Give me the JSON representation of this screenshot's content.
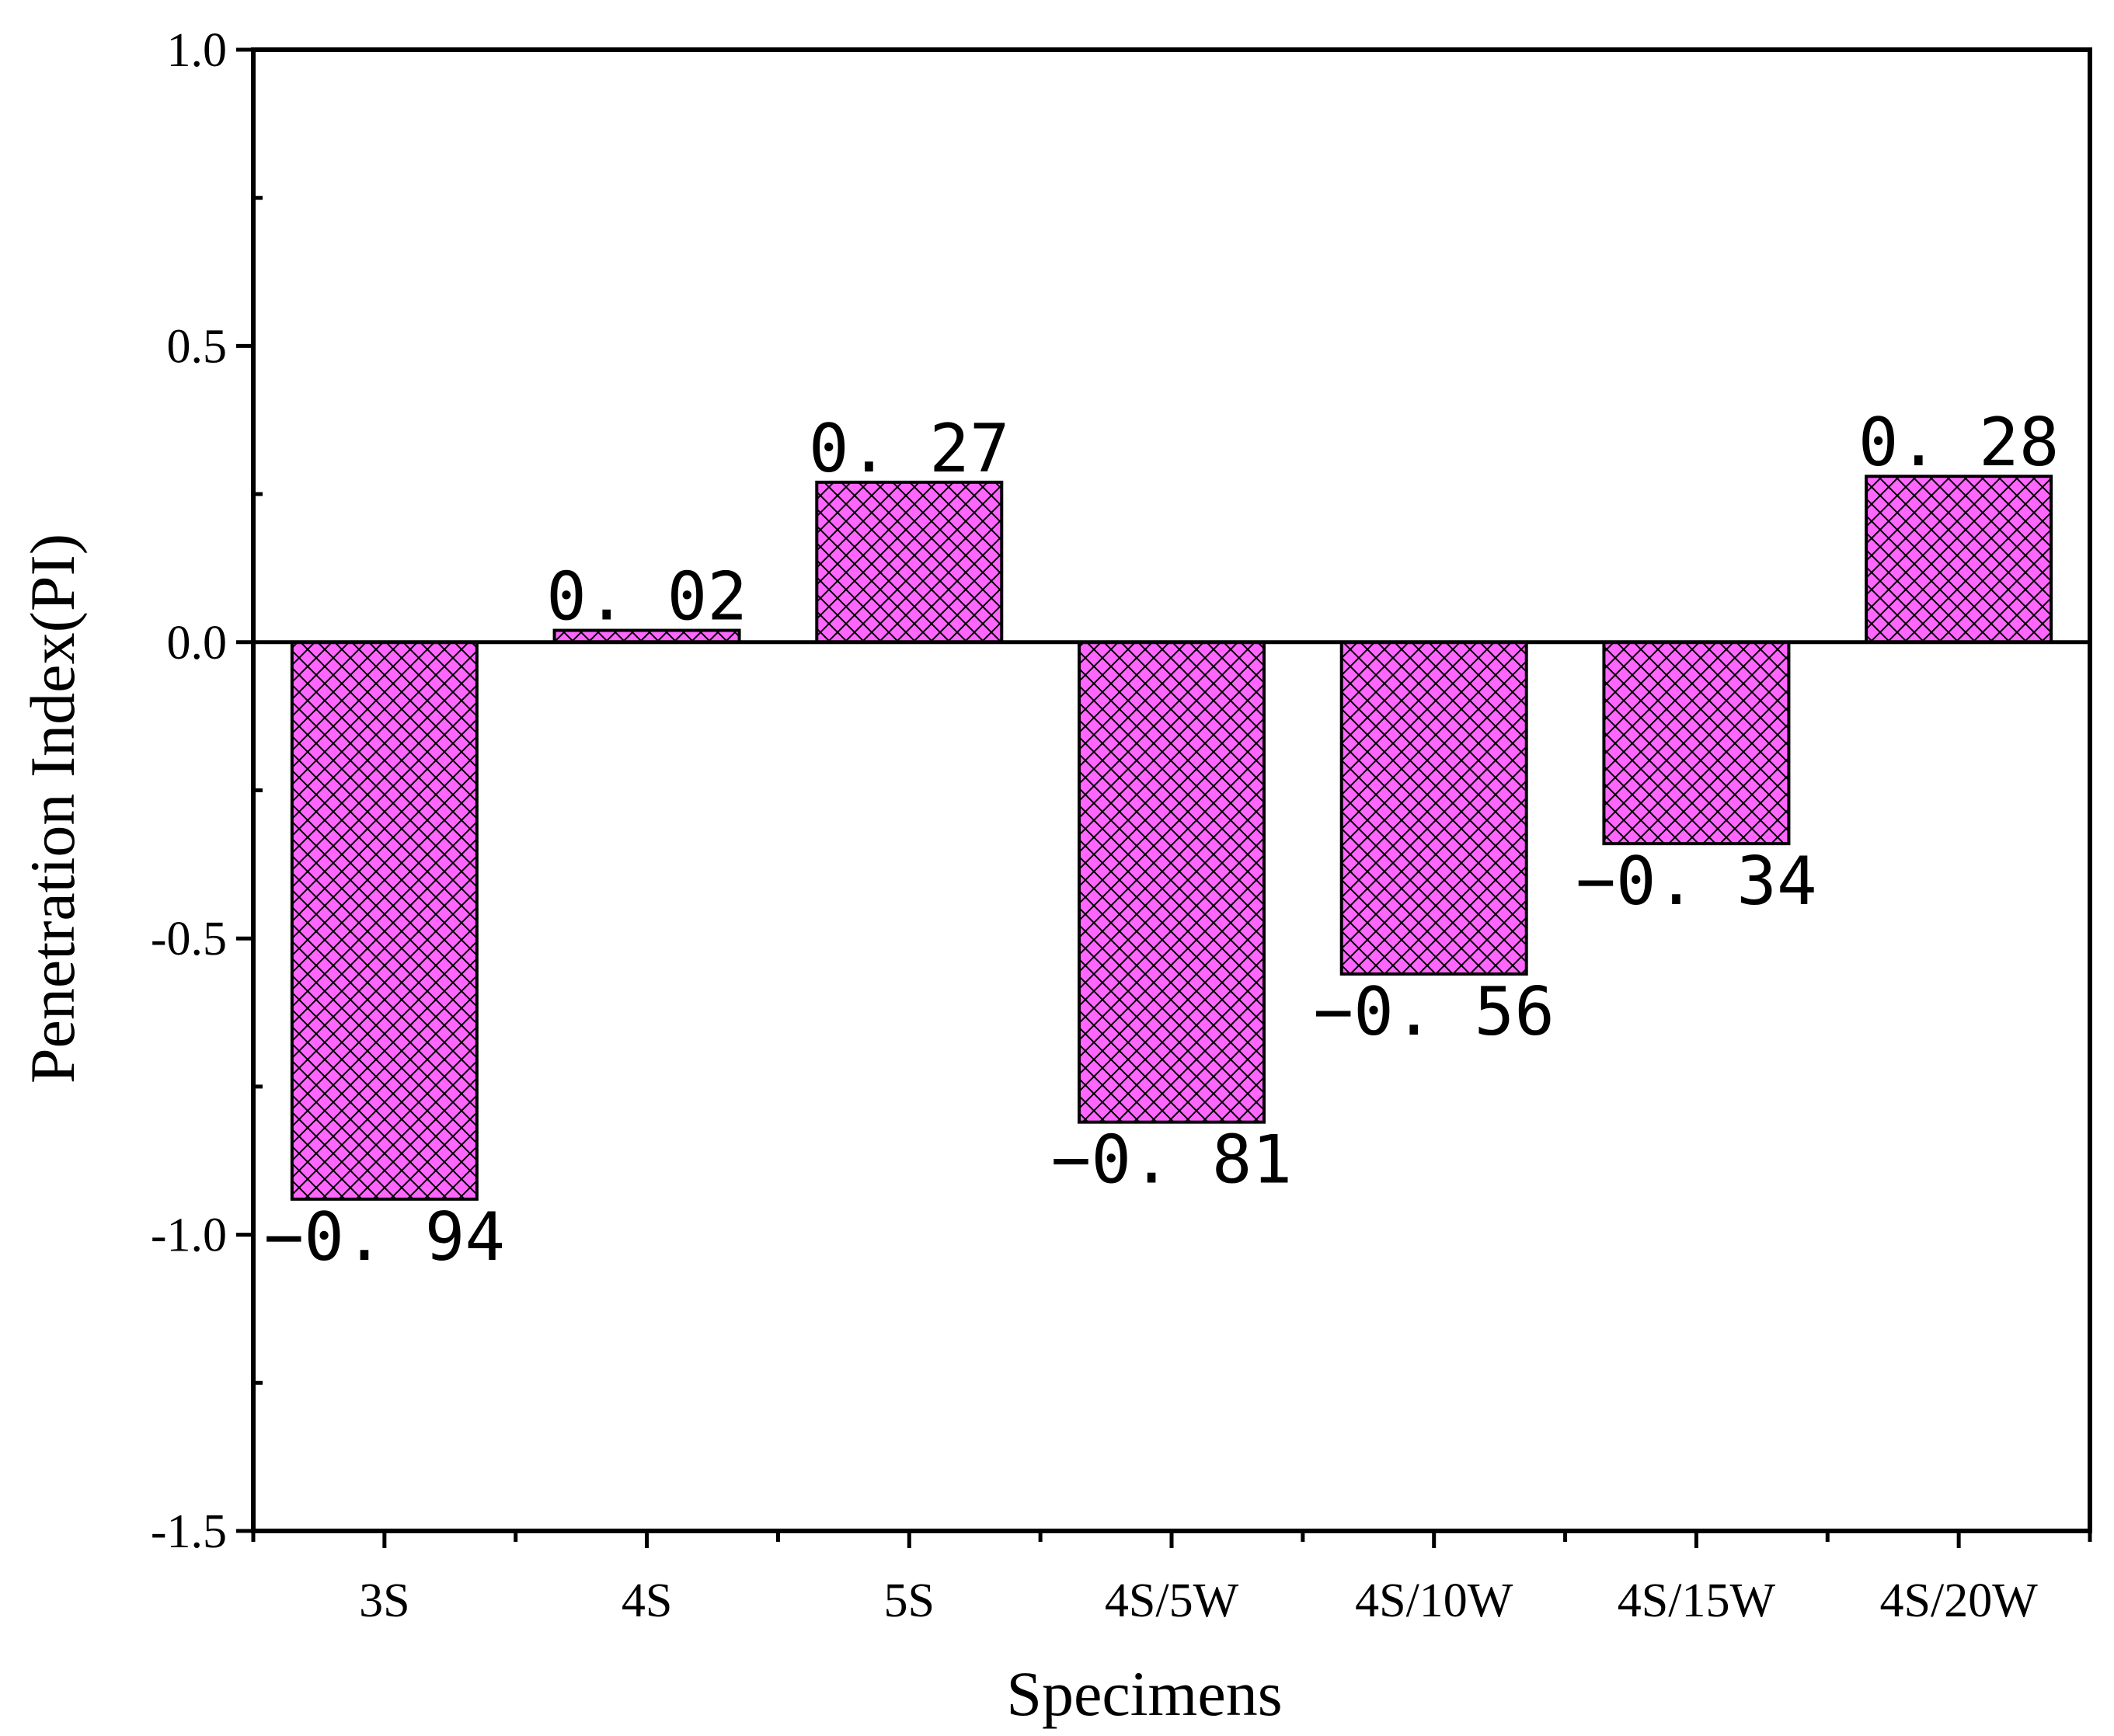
{
  "chart_data": {
    "type": "bar",
    "title": "",
    "xlabel": "Specimens",
    "ylabel": "Penetration Index(PI)",
    "categories": [
      "3S",
      "4S",
      "5S",
      "4S/5W",
      "4S/10W",
      "4S/15W",
      "4S/20W"
    ],
    "values": [
      -0.94,
      0.02,
      0.27,
      -0.81,
      -0.56,
      -0.34,
      0.28
    ],
    "data_labels": [
      "−0. 94",
      "0. 02",
      "0. 27",
      "−0. 81",
      "−0. 56",
      "−0. 34",
      "0. 28"
    ],
    "ylim": [
      -1.5,
      1.0
    ],
    "yticks": [
      -1.5,
      -1.0,
      -0.5,
      0.0,
      0.5,
      1.0
    ],
    "ytick_labels": [
      "-1.5",
      "-1.0",
      "-0.5",
      "0.0",
      "0.5",
      "1.0"
    ],
    "grid": false,
    "bar_fill": "#ff66ff",
    "hatch": "crosshatch"
  }
}
